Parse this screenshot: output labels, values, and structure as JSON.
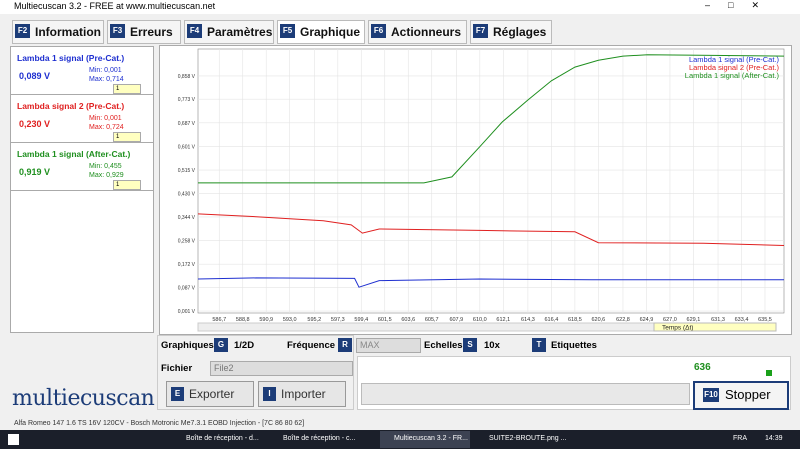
{
  "window": {
    "title": "Multiecuscan 3.2 - FREE at www.multiecuscan.net"
  },
  "tabs": [
    {
      "key": "F2",
      "label": "Information"
    },
    {
      "key": "F3",
      "label": "Erreurs"
    },
    {
      "key": "F4",
      "label": "Paramètres"
    },
    {
      "key": "F5",
      "label": "Graphique"
    },
    {
      "key": "F6",
      "label": "Actionneurs"
    },
    {
      "key": "F7",
      "label": "Réglages"
    }
  ],
  "signals": [
    {
      "name": "Lambda 1 signal (Pre-Cat.)",
      "value": "0,089 V",
      "min": "Min: 0,001",
      "max": "Max: 0,714",
      "scale": "1",
      "color": "#1e2fd0"
    },
    {
      "name": "Lambda signal 2 (Pre-Cat.)",
      "value": "0,230 V",
      "min": "Min: 0,001",
      "max": "Max: 0,724",
      "scale": "1",
      "color": "#e02020"
    },
    {
      "name": "Lambda 1 signal (After-Cat.)",
      "value": "0,919 V",
      "min": "Min: 0,455",
      "max": "Max: 0,929",
      "scale": "1",
      "color": "#1f8f1f"
    }
  ],
  "chart_data": {
    "type": "line",
    "x_label": "Temps (Δt)",
    "grid": true,
    "xlim": [
      584.8,
      637.2
    ],
    "xticks": [
      {
        "value": 586.7,
        "label": "586,7"
      },
      {
        "value": 588.8,
        "label": "588,8"
      },
      {
        "value": 590.9,
        "label": "590,9"
      },
      {
        "value": 593.0,
        "label": "593,0"
      },
      {
        "value": 595.2,
        "label": "595,2"
      },
      {
        "value": 597.3,
        "label": "597,3"
      },
      {
        "value": 599.4,
        "label": "599,4"
      },
      {
        "value": 601.5,
        "label": "601,5"
      },
      {
        "value": 603.6,
        "label": "603,6"
      },
      {
        "value": 605.7,
        "label": "605,7"
      },
      {
        "value": 607.9,
        "label": "607,9"
      },
      {
        "value": 610.0,
        "label": "610,0"
      },
      {
        "value": 612.1,
        "label": "612,1"
      },
      {
        "value": 614.3,
        "label": "614,3"
      },
      {
        "value": 616.4,
        "label": "616,4"
      },
      {
        "value": 618.5,
        "label": "618,5"
      },
      {
        "value": 620.6,
        "label": "620,6"
      },
      {
        "value": 622.8,
        "label": "622,8"
      },
      {
        "value": 624.9,
        "label": "624,9"
      },
      {
        "value": 627.0,
        "label": "627,0"
      },
      {
        "value": 629.1,
        "label": "629,1"
      },
      {
        "value": 631.3,
        "label": "631,3"
      },
      {
        "value": 633.4,
        "label": "633,4"
      },
      {
        "value": 635.5,
        "label": "635,5"
      }
    ],
    "ylim": [
      -0.006,
      0.956
    ],
    "yticks": [
      {
        "value": 0.001,
        "label": "0,001 V"
      },
      {
        "value": 0.087,
        "label": "0,087 V"
      },
      {
        "value": 0.172,
        "label": "0,172 V"
      },
      {
        "value": 0.258,
        "label": "0,258 V"
      },
      {
        "value": 0.344,
        "label": "0,344 V"
      },
      {
        "value": 0.43,
        "label": "0,430 V"
      },
      {
        "value": 0.515,
        "label": "0,515 V"
      },
      {
        "value": 0.601,
        "label": "0,601 V"
      },
      {
        "value": 0.687,
        "label": "0,687 V"
      },
      {
        "value": 0.773,
        "label": "0,773 V"
      },
      {
        "value": 0.858,
        "label": "0,858 V"
      }
    ],
    "series": [
      {
        "name": "Lambda 1 signal (Pre-Cat.)",
        "color": "#1e2fd0",
        "x": [
          584.8,
          590,
          598.8,
          599.2,
          601,
          610,
          620,
          637.2
        ],
        "values": [
          0.118,
          0.122,
          0.12,
          0.088,
          0.112,
          0.118,
          0.115,
          0.115
        ]
      },
      {
        "name": "Lambda signal 2 (Pre-Cat.)",
        "color": "#e02020",
        "x": [
          584.8,
          590,
          596,
          598.5,
          599.5,
          601,
          610,
          618.5,
          620.6,
          630,
          637.2
        ],
        "values": [
          0.355,
          0.345,
          0.33,
          0.315,
          0.285,
          0.3,
          0.295,
          0.29,
          0.25,
          0.248,
          0.24
        ]
      },
      {
        "name": "Lambda 1 signal (After-Cat.)",
        "color": "#1f8f1f",
        "x": [
          584.8,
          596,
          605,
          607.5,
          610,
          612,
          614.3,
          616.4,
          618.5,
          620.6,
          622.8,
          625,
          637.2
        ],
        "values": [
          0.468,
          0.468,
          0.468,
          0.49,
          0.6,
          0.69,
          0.77,
          0.84,
          0.89,
          0.915,
          0.93,
          0.935,
          0.93
        ]
      }
    ]
  },
  "controls": {
    "graph_label": "Graphiques",
    "graph_key": "G",
    "graph_value": "1/2D",
    "freq_label": "Fréquence",
    "freq_key": "R",
    "freq_value": "MAX",
    "scale_label": "Echelles",
    "scale_key": "S",
    "scale_value": "10x",
    "labels_key": "T",
    "labels_label": "Etiquettes",
    "file_label": "Fichier",
    "file_value": "File2",
    "export_key": "E",
    "export_label": "Exporter",
    "import_key": "I",
    "import_label": "Importer",
    "counter": "636",
    "stop_key": "F10",
    "stop_label": "Stopper"
  },
  "logo": "multiecuscan",
  "status": "Alfa Romeo 147 1.6 TS 16V 120CV - Bosch Motronic Me7.3.1 EOBD Injection - [7C 86 80 62]",
  "taskbar": {
    "items": [
      "Boîte de réception - d...",
      "Boîte de réception - c...",
      "Multiecuscan 3.2 - FR...",
      "SUITE2-BROUTE.png ..."
    ],
    "lang": "FRA",
    "time": "14:39"
  }
}
